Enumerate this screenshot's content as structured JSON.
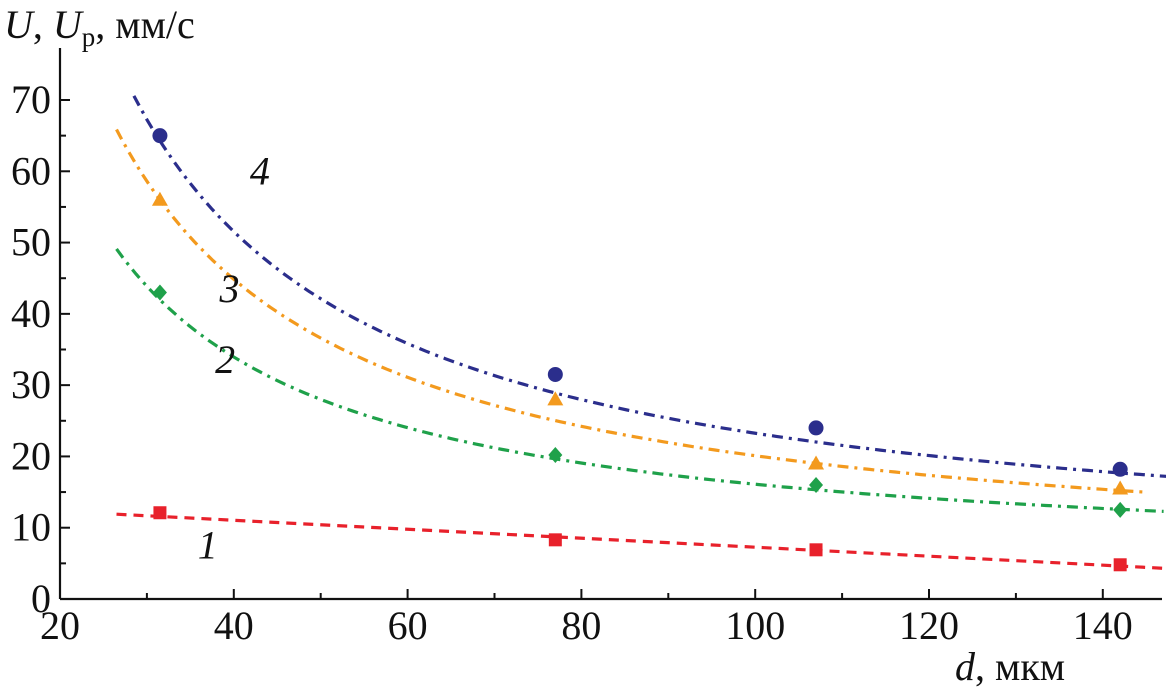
{
  "chart_data": {
    "type": "line",
    "ylabel": {
      "var1": "U",
      "sep": ", ",
      "var2": "U",
      "var2_sub": "р",
      "unit": ", мм/с"
    },
    "xlabel": {
      "var": "d",
      "unit": ", мкм"
    },
    "xlim": [
      20,
      148
    ],
    "ylim": [
      0,
      78
    ],
    "xticks": [
      20,
      40,
      60,
      80,
      100,
      120,
      140
    ],
    "yticks": [
      0,
      10,
      20,
      30,
      40,
      50,
      60,
      70
    ],
    "x": [
      31.5,
      77,
      107,
      142
    ],
    "series": [
      {
        "label": "1",
        "color": "#e8212b",
        "marker": "square",
        "dash": "10 7",
        "values": [
          12.1,
          8.3,
          6.9,
          4.8
        ],
        "fit": {
          "form": "linear",
          "x_from": 26.5,
          "y_from": 11.9,
          "x_to": 147,
          "y_to": 4.3
        },
        "label_at": [
          37,
          7.5
        ]
      },
      {
        "label": "2",
        "color": "#1fa14a",
        "marker": "diamond",
        "dash": "11 6 3 6",
        "values": [
          43,
          20.2,
          16,
          12.5
        ],
        "fit": {
          "form": "a+b/x",
          "a": 4.2,
          "b": 1190,
          "x_from": 26.5,
          "x_to": 147
        },
        "label_at": [
          39,
          33.5
        ]
      },
      {
        "label": "3",
        "color": "#f39a1e",
        "marker": "triangle",
        "dash": "11 6 3 6",
        "values": [
          56,
          28,
          19,
          15.5
        ],
        "fit": {
          "form": "a+b/x",
          "a": 3.6,
          "b": 1650,
          "x_from": 26.5,
          "x_to": 145
        },
        "label_at": [
          39.5,
          43.5
        ]
      },
      {
        "label": "4",
        "color": "#2b2e8c",
        "marker": "circle",
        "dash": "11 6 3 6",
        "values": [
          65,
          31.5,
          24,
          18.2
        ],
        "fit": {
          "form": "a+b/x",
          "a": 4.4,
          "b": 1886,
          "x_from": 28.5,
          "x_to": 148
        },
        "label_at": [
          43,
          60
        ]
      }
    ]
  }
}
